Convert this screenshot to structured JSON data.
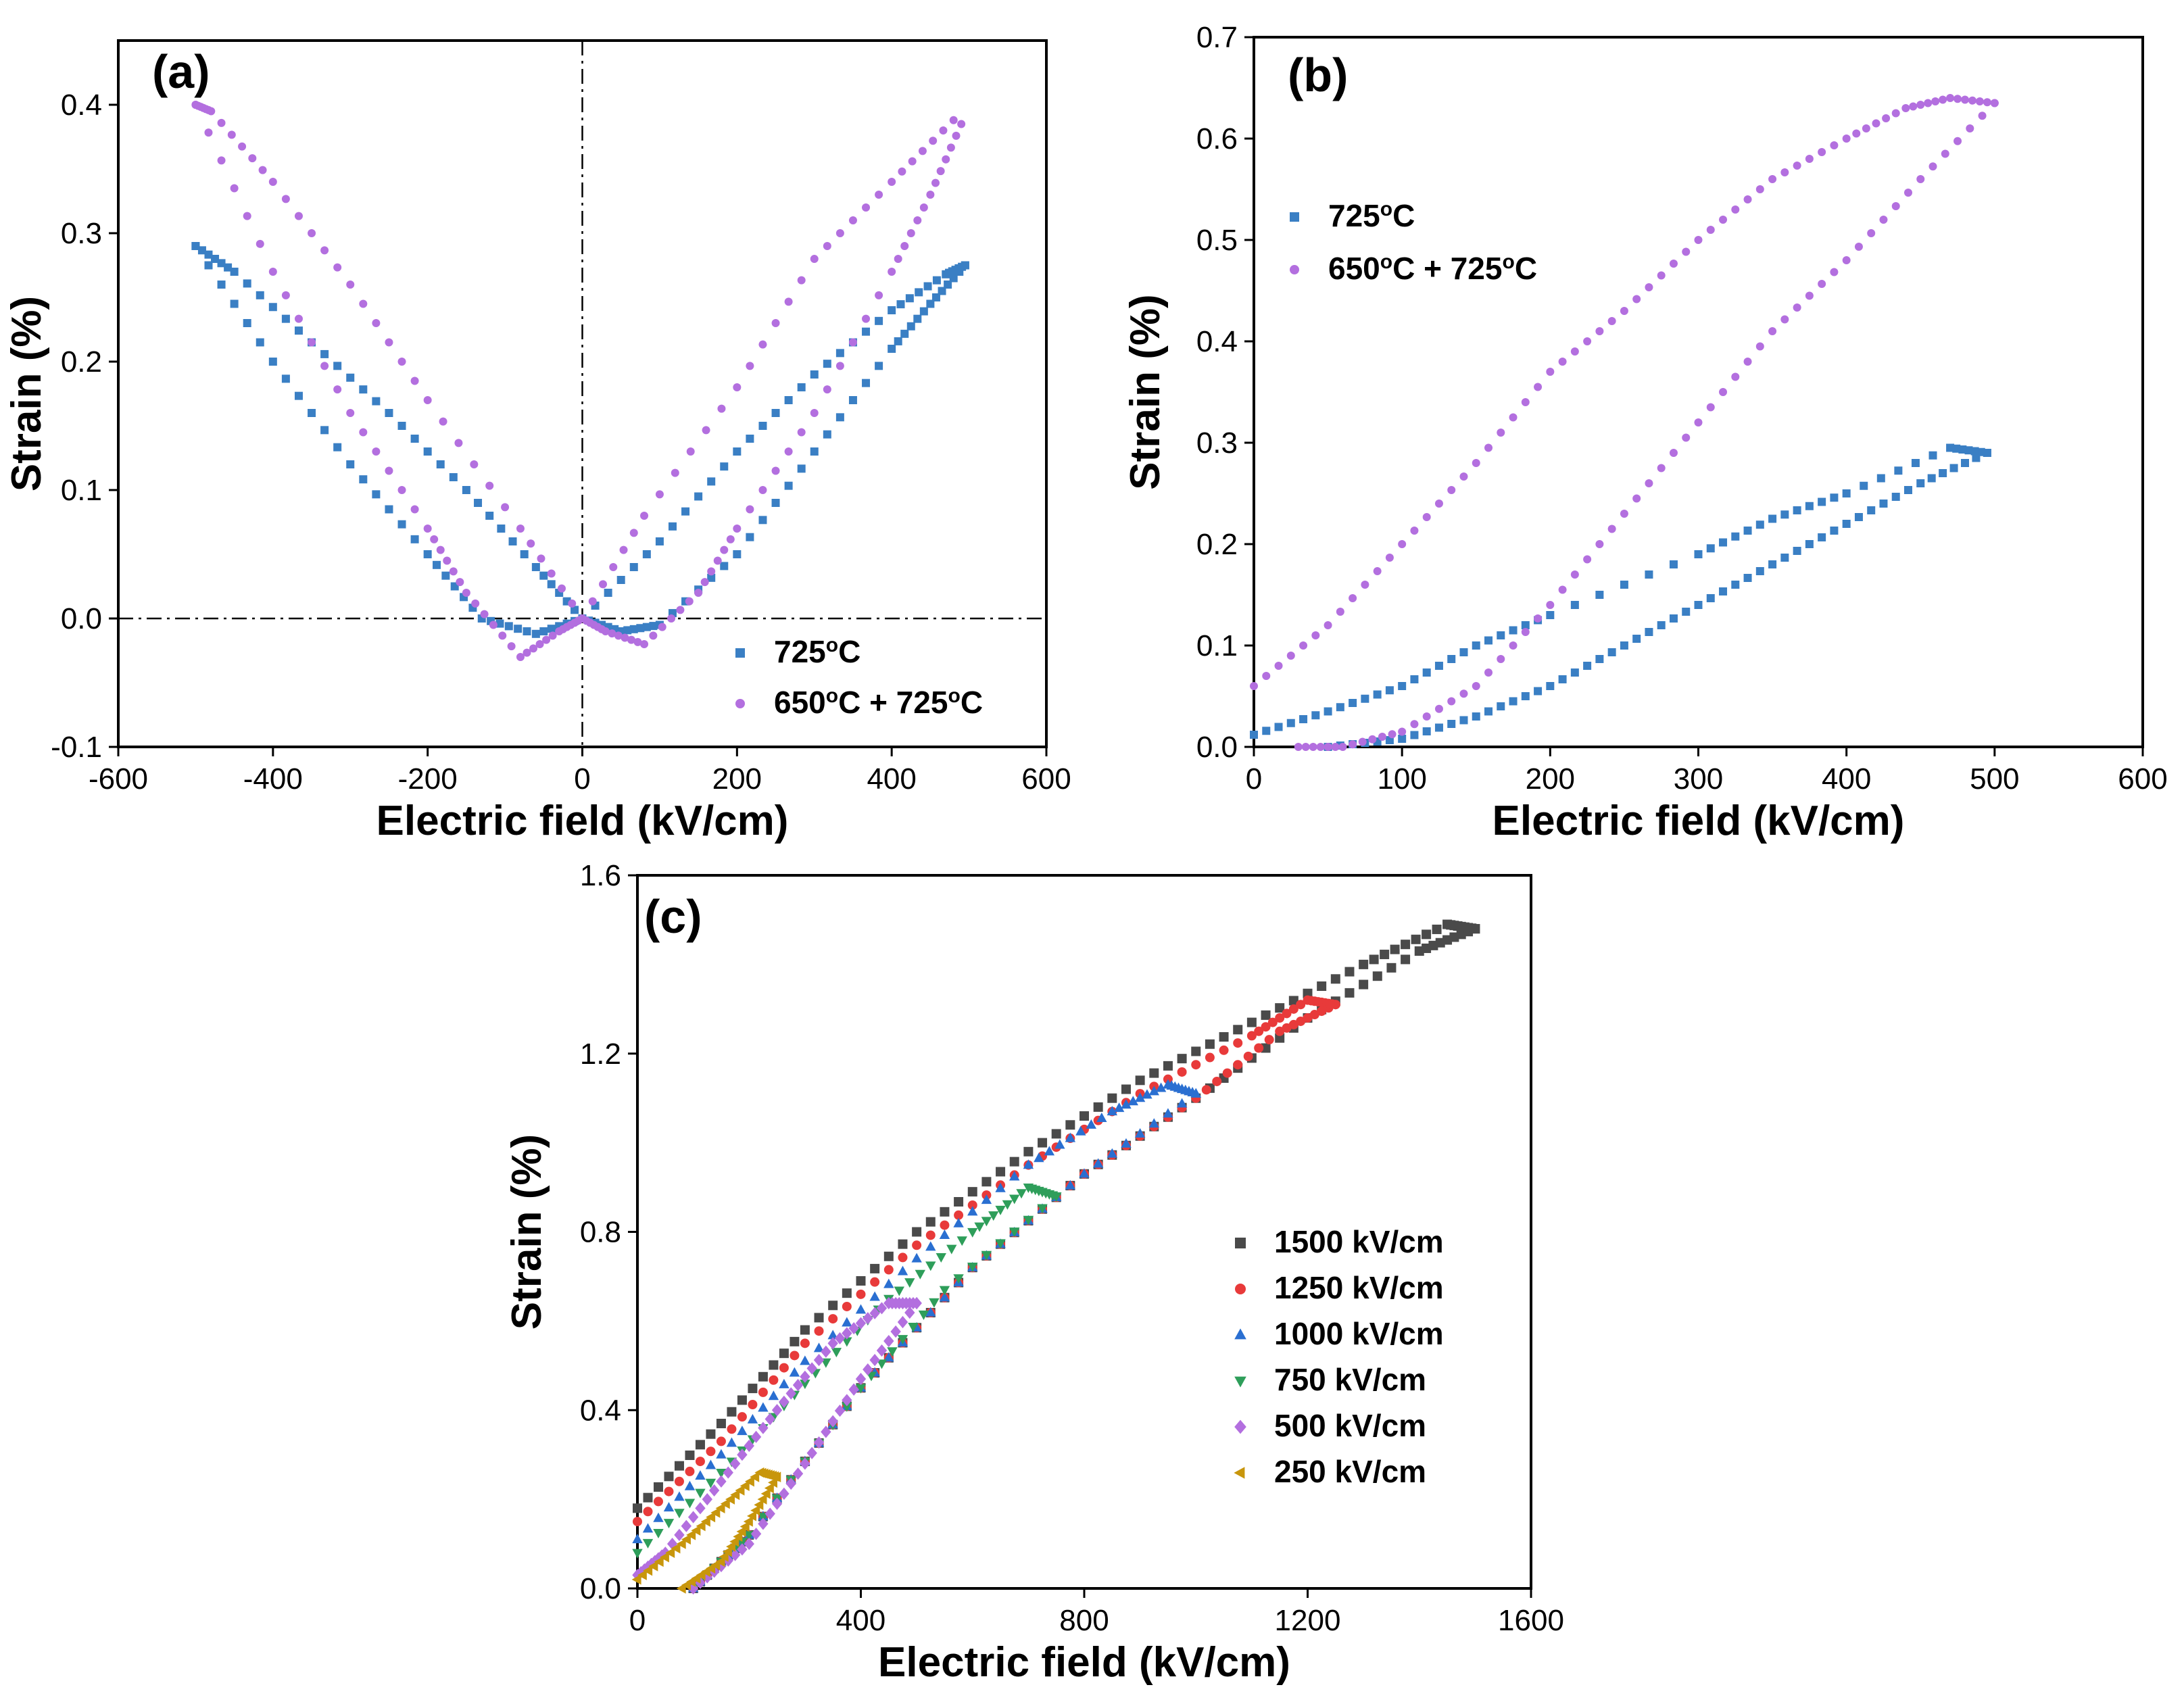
{
  "chart_data": [
    {
      "type": "scatter",
      "panel_label": "(a)",
      "xlabel": "Electric field (kV/cm)",
      "ylabel": "Strain (%)",
      "xlim": [
        -600,
        600
      ],
      "ylim": [
        -0.1,
        0.45
      ],
      "xticks": [
        -600,
        -400,
        -200,
        0,
        200,
        400,
        600
      ],
      "yticks": [
        -0.1,
        0.0,
        0.1,
        0.2,
        0.3,
        0.4
      ],
      "tick_labels_x": [
        "-600",
        "-400",
        "-200",
        "0",
        "200",
        "400",
        "600"
      ],
      "tick_labels_y": [
        "-0.1",
        "0.0",
        "0.1",
        "0.2",
        "0.3",
        "0.4"
      ],
      "reference_lines": {
        "x": 0,
        "y": 0,
        "style": "dash-dot"
      },
      "legend": {
        "placement": "bottom-right"
      },
      "series": [
        {
          "name": "725°C",
          "label_html": [
            "725",
            "o",
            "C"
          ],
          "color": "#3a7fc4",
          "marker": "square",
          "loops": [
            [
              [
                -500,
                0.29
              ],
              [
                -400,
                0.2
              ],
              [
                -300,
                0.12
              ],
              [
                -200,
                0.05
              ],
              [
                -130,
                0.0
              ],
              [
                -60,
                -0.012
              ],
              [
                0,
                0.0
              ],
              [
                100,
                0.06
              ],
              [
                200,
                0.13
              ],
              [
                300,
                0.19
              ],
              [
                400,
                0.24
              ],
              [
                470,
                0.268
              ],
              [
                495,
                0.275
              ]
            ],
            [
              [
                495,
                0.275
              ],
              [
                450,
                0.245
              ],
              [
                400,
                0.21
              ],
              [
                300,
                0.13
              ],
              [
                200,
                0.05
              ],
              [
                100,
                -0.005
              ],
              [
                50,
                -0.01
              ],
              [
                0,
                0.0
              ],
              [
                -60,
                0.04
              ],
              [
                -150,
                0.1
              ],
              [
                -250,
                0.16
              ],
              [
                -350,
                0.215
              ],
              [
                -450,
                0.27
              ],
              [
                -500,
                0.29
              ]
            ]
          ]
        },
        {
          "name": "650°C + 725°C",
          "label_html": [
            "650",
            "o",
            "C + 725",
            "o",
            "C"
          ],
          "color": "#b36fdf",
          "marker": "circle",
          "loops": [
            [
              [
                -500,
                0.4
              ],
              [
                -400,
                0.27
              ],
              [
                -300,
                0.16
              ],
              [
                -200,
                0.07
              ],
              [
                -150,
                0.02
              ],
              [
                -80,
                -0.03
              ],
              [
                -30,
                -0.01
              ],
              [
                0,
                0.0
              ],
              [
                80,
                0.08
              ],
              [
                200,
                0.18
              ],
              [
                300,
                0.28
              ],
              [
                400,
                0.34
              ],
              [
                480,
                0.388
              ]
            ],
            [
              [
                490,
                0.385
              ],
              [
                450,
                0.33
              ],
              [
                400,
                0.27
              ],
              [
                300,
                0.16
              ],
              [
                200,
                0.07
              ],
              [
                150,
                0.02
              ],
              [
                80,
                -0.02
              ],
              [
                30,
                -0.01
              ],
              [
                0,
                0.0
              ],
              [
                -80,
                0.07
              ],
              [
                -200,
                0.17
              ],
              [
                -300,
                0.26
              ],
              [
                -400,
                0.34
              ],
              [
                -480,
                0.395
              ],
              [
                -500,
                0.4
              ]
            ]
          ]
        }
      ]
    },
    {
      "type": "scatter",
      "panel_label": "(b)",
      "xlabel": "Electric field (kV/cm)",
      "ylabel": "Strain (%)",
      "xlim": [
        0,
        600
      ],
      "ylim": [
        0,
        0.7
      ],
      "xticks": [
        0,
        100,
        200,
        300,
        400,
        500,
        600
      ],
      "yticks": [
        0.0,
        0.1,
        0.2,
        0.3,
        0.4,
        0.5,
        0.6,
        0.7
      ],
      "tick_labels_x": [
        "0",
        "100",
        "200",
        "300",
        "400",
        "500",
        "600"
      ],
      "tick_labels_y": [
        "0.0",
        "0.1",
        "0.2",
        "0.3",
        "0.4",
        "0.5",
        "0.6",
        "0.7"
      ],
      "legend": {
        "placement": "top-left"
      },
      "series": [
        {
          "name": "725°C",
          "label_html": [
            "725",
            "o",
            "C"
          ],
          "color": "#3a7fc4",
          "marker": "square",
          "loops": [
            [
              [
                50,
                0.0
              ],
              [
                100,
                0.008
              ],
              [
                150,
                0.03
              ],
              [
                200,
                0.06
              ],
              [
                250,
                0.1
              ],
              [
                300,
                0.14
              ],
              [
                350,
                0.18
              ],
              [
                400,
                0.22
              ],
              [
                450,
                0.26
              ],
              [
                495,
                0.29
              ]
            ],
            [
              [
                495,
                0.29
              ],
              [
                470,
                0.295
              ],
              [
                400,
                0.25
              ],
              [
                350,
                0.225
              ],
              [
                300,
                0.19
              ],
              [
                200,
                0.13
              ],
              [
                150,
                0.1
              ],
              [
                100,
                0.06
              ],
              [
                50,
                0.035
              ],
              [
                0,
                0.012
              ]
            ]
          ]
        },
        {
          "name": "650°C + 725°C",
          "label_html": [
            "650",
            "o",
            "C + 725",
            "o",
            "C"
          ],
          "color": "#b36fdf",
          "marker": "circle",
          "loops": [
            [
              [
                30,
                0.0
              ],
              [
                60,
                0.0
              ],
              [
                100,
                0.015
              ],
              [
                150,
                0.06
              ],
              [
                200,
                0.14
              ],
              [
                250,
                0.23
              ],
              [
                300,
                0.32
              ],
              [
                350,
                0.41
              ],
              [
                400,
                0.48
              ],
              [
                450,
                0.56
              ],
              [
                500,
                0.635
              ]
            ],
            [
              [
                500,
                0.635
              ],
              [
                470,
                0.64
              ],
              [
                440,
                0.63
              ],
              [
                400,
                0.6
              ],
              [
                350,
                0.56
              ],
              [
                300,
                0.5
              ],
              [
                250,
                0.43
              ],
              [
                200,
                0.37
              ],
              [
                150,
                0.28
              ],
              [
                100,
                0.2
              ],
              [
                50,
                0.12
              ],
              [
                0,
                0.06
              ]
            ]
          ]
        }
      ]
    },
    {
      "type": "scatter",
      "panel_label": "(c)",
      "xlabel": "Electric field (kV/cm)",
      "ylabel": "Strain (%)",
      "xlim": [
        0,
        1600
      ],
      "ylim": [
        0,
        1.6
      ],
      "xticks": [
        0,
        400,
        800,
        1200,
        1600
      ],
      "yticks": [
        0.0,
        0.4,
        0.8,
        1.2,
        1.6
      ],
      "tick_labels_x": [
        "0",
        "400",
        "800",
        "1200",
        "1600"
      ],
      "tick_labels_y": [
        "0.0",
        "0.4",
        "0.8",
        "1.2",
        "1.6"
      ],
      "legend": {
        "placement": "center-right"
      },
      "series": [
        {
          "name": "1500 kV/cm",
          "color": "#4a4a4a",
          "marker": "square",
          "loops": [
            [
              [
                100,
                0.0
              ],
              [
                200,
                0.12
              ],
              [
                400,
                0.45
              ],
              [
                600,
                0.72
              ],
              [
                800,
                0.93
              ],
              [
                1000,
                1.1
              ],
              [
                1200,
                1.28
              ],
              [
                1400,
                1.43
              ],
              [
                1500,
                1.48
              ]
            ],
            [
              [
                1500,
                1.48
              ],
              [
                1450,
                1.49
              ],
              [
                1300,
                1.4
              ],
              [
                1100,
                1.27
              ],
              [
                900,
                1.14
              ],
              [
                700,
                0.98
              ],
              [
                500,
                0.8
              ],
              [
                300,
                0.58
              ],
              [
                150,
                0.37
              ],
              [
                0,
                0.18
              ]
            ]
          ]
        },
        {
          "name": "1250 kV/cm",
          "color": "#e83a3a",
          "marker": "circle",
          "loops": [
            [
              [
                100,
                0.0
              ],
              [
                200,
                0.12
              ],
              [
                400,
                0.45
              ],
              [
                600,
                0.72
              ],
              [
                800,
                0.93
              ],
              [
                1000,
                1.1
              ],
              [
                1150,
                1.25
              ],
              [
                1250,
                1.31
              ]
            ],
            [
              [
                1250,
                1.31
              ],
              [
                1200,
                1.32
              ],
              [
                1100,
                1.24
              ],
              [
                900,
                1.11
              ],
              [
                700,
                0.95
              ],
              [
                500,
                0.77
              ],
              [
                300,
                0.55
              ],
              [
                150,
                0.33
              ],
              [
                0,
                0.15
              ]
            ]
          ]
        },
        {
          "name": "1000 kV/cm",
          "color": "#2a6fd1",
          "marker": "triangle-up",
          "loops": [
            [
              [
                100,
                0.0
              ],
              [
                200,
                0.12
              ],
              [
                400,
                0.45
              ],
              [
                600,
                0.72
              ],
              [
                800,
                0.93
              ],
              [
                1000,
                1.11
              ]
            ],
            [
              [
                1000,
                1.11
              ],
              [
                950,
                1.13
              ],
              [
                850,
                1.07
              ],
              [
                700,
                0.95
              ],
              [
                500,
                0.74
              ],
              [
                300,
                0.51
              ],
              [
                150,
                0.3
              ],
              [
                0,
                0.11
              ]
            ]
          ]
        },
        {
          "name": "750 kV/cm",
          "color": "#2e9e5a",
          "marker": "triangle-down",
          "loops": [
            [
              [
                100,
                0.0
              ],
              [
                200,
                0.12
              ],
              [
                400,
                0.45
              ],
              [
                550,
                0.67
              ],
              [
                750,
                0.88
              ]
            ],
            [
              [
                750,
                0.88
              ],
              [
                700,
                0.9
              ],
              [
                600,
                0.8
              ],
              [
                450,
                0.65
              ],
              [
                300,
                0.46
              ],
              [
                150,
                0.26
              ],
              [
                0,
                0.08
              ]
            ]
          ]
        },
        {
          "name": "500 kV/cm",
          "color": "#b36fdf",
          "marker": "diamond",
          "loops": [
            [
              [
                100,
                0.0
              ],
              [
                200,
                0.1
              ],
              [
                300,
                0.28
              ],
              [
                400,
                0.47
              ],
              [
                500,
                0.64
              ]
            ],
            [
              [
                500,
                0.64
              ],
              [
                450,
                0.64
              ],
              [
                350,
                0.55
              ],
              [
                250,
                0.4
              ],
              [
                150,
                0.24
              ],
              [
                50,
                0.08
              ],
              [
                0,
                0.03
              ]
            ]
          ]
        },
        {
          "name": "250 kV/cm",
          "color": "#c8960c",
          "marker": "triangle-left",
          "loops": [
            [
              [
                80,
                0.0
              ],
              [
                150,
                0.06
              ],
              [
                200,
                0.15
              ],
              [
                250,
                0.25
              ]
            ],
            [
              [
                250,
                0.25
              ],
              [
                220,
                0.26
              ],
              [
                150,
                0.18
              ],
              [
                80,
                0.1
              ],
              [
                0,
                0.02
              ]
            ]
          ]
        }
      ]
    }
  ]
}
